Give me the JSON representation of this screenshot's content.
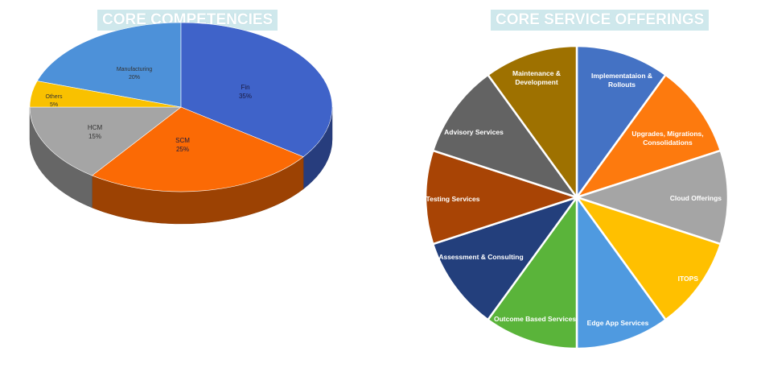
{
  "chart_data": [
    {
      "type": "pie",
      "title": "CORE COMPETENCIES",
      "style": "3d",
      "slices": [
        {
          "label": "Manufacturing",
          "value": 20,
          "pct_label": "20%",
          "color": "#4d91d9"
        },
        {
          "label": "Fin",
          "value": 35,
          "pct_label": "35%",
          "color": "#3f63c9"
        },
        {
          "label": "SCM",
          "value": 25,
          "pct_label": "25%",
          "color": "#fb6a05"
        },
        {
          "label": "HCM",
          "value": 15,
          "pct_label": "15%",
          "color": "#a5a5a5"
        },
        {
          "label": "Others",
          "value": 5,
          "pct_label": "5%",
          "color": "#f9c100"
        }
      ]
    },
    {
      "type": "pie",
      "title": "CORE SERVICE OFFERINGS",
      "slices": [
        {
          "label": "Implementataion & Rollouts",
          "value": 1,
          "color": "#4472c4"
        },
        {
          "label": "Upgrades, Migrations, Consolidations",
          "value": 1,
          "color": "#fd7a0e"
        },
        {
          "label": "Cloud Offerings",
          "value": 1,
          "color": "#a5a5a5"
        },
        {
          "label": "ITOPS",
          "value": 1,
          "color": "#ffc000"
        },
        {
          "label": "Edge App Services",
          "value": 1,
          "color": "#4f9ae0"
        },
        {
          "label": "Outcome Based Services",
          "value": 1,
          "color": "#5ab43a"
        },
        {
          "label": "Assessment & Consulting",
          "value": 1,
          "color": "#233f7c"
        },
        {
          "label": "Testing Services",
          "value": 1,
          "color": "#a84405"
        },
        {
          "label": "Advisory Services",
          "value": 1,
          "color": "#636363"
        },
        {
          "label": "Maintenance & Development",
          "value": 1,
          "color": "#9e7100"
        }
      ]
    }
  ]
}
